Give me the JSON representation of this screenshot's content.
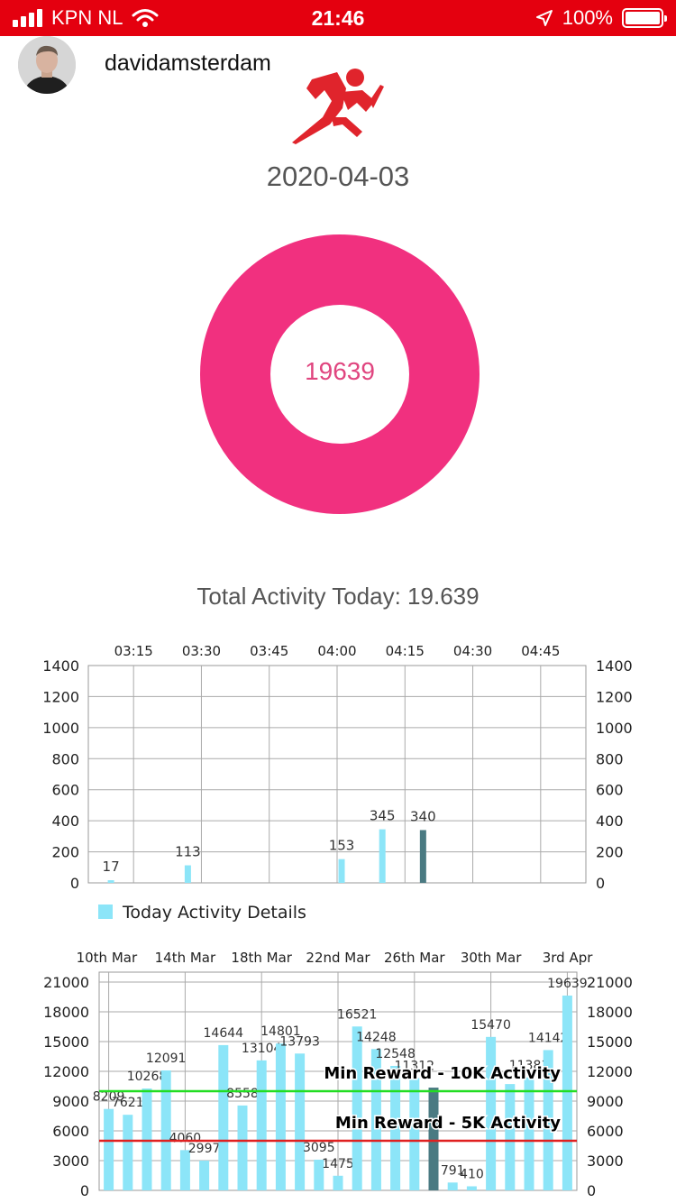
{
  "status_bar": {
    "carrier": "KPN NL",
    "time": "21:46",
    "battery": "100%",
    "icons": [
      "signal-icon",
      "wifi-icon",
      "location-arrow-icon",
      "battery-icon"
    ]
  },
  "header": {
    "username": "davidamsterdam",
    "logo_icon": "running-person-icon"
  },
  "date": "2020-04-03",
  "today_total": "19639",
  "total_activity_label": "Total Activity Today: 19.639",
  "colors": {
    "status_bar": "#e4000f",
    "donut": "#f1307f",
    "bar": "#8ce5f8",
    "bar_highlight": "#4a7a82",
    "line_10k": "#22dd22",
    "line_5k": "#e02020"
  },
  "chart_data": [
    {
      "type": "bar",
      "x_ticks": [
        "03:15",
        "03:30",
        "03:45",
        "04:00",
        "04:15",
        "04:30",
        "04:45"
      ],
      "series": [
        {
          "name": "Today Activity Details",
          "points": [
            {
              "x": "03:10",
              "y": 17
            },
            {
              "x": "03:27",
              "y": 113
            },
            {
              "x": "04:01",
              "y": 153
            },
            {
              "x": "04:10",
              "y": 345
            },
            {
              "x": "04:19",
              "y": 340,
              "highlight": true
            }
          ]
        }
      ],
      "ylim": [
        0,
        1400
      ],
      "y_ticks": [
        0,
        200,
        400,
        600,
        800,
        1000,
        1200,
        1400
      ],
      "xlim": [
        "03:05",
        "04:55"
      ],
      "grid": true,
      "legend_position": "bottom-left"
    },
    {
      "type": "bar",
      "x_ticks": [
        "10th Mar",
        "14th Mar",
        "18th Mar",
        "22nd Mar",
        "26th Mar",
        "30th Mar",
        "3rd Apr"
      ],
      "values": [
        8209,
        7621,
        10268,
        12091,
        4060,
        2997,
        14644,
        8558,
        13104,
        14801,
        13793,
        3095,
        1475,
        16521,
        14248,
        12548,
        11312,
        10358,
        791,
        410,
        15470,
        10718,
        11381,
        14142,
        19639
      ],
      "labels": [
        "8209",
        "7621",
        "10268",
        "12091",
        "4060",
        "2997",
        "14644",
        "8558",
        "13104",
        "14801",
        "13793",
        "3095",
        "1475",
        "16521",
        "14248",
        "12548",
        "11312",
        "",
        "791",
        "410",
        "15470",
        "",
        "11381",
        "14142",
        "19639"
      ],
      "highlight_index": 17,
      "ylim": [
        0,
        22000
      ],
      "y_ticks": [
        0,
        3000,
        6000,
        9000,
        12000,
        15000,
        18000,
        21000
      ],
      "grid": true,
      "reference_lines": [
        {
          "label": "Min Reward - 10K Activity",
          "value": 10000,
          "color": "#22dd22"
        },
        {
          "label": "Min Reward - 5K Activity",
          "value": 5000,
          "color": "#e02020"
        }
      ]
    }
  ]
}
